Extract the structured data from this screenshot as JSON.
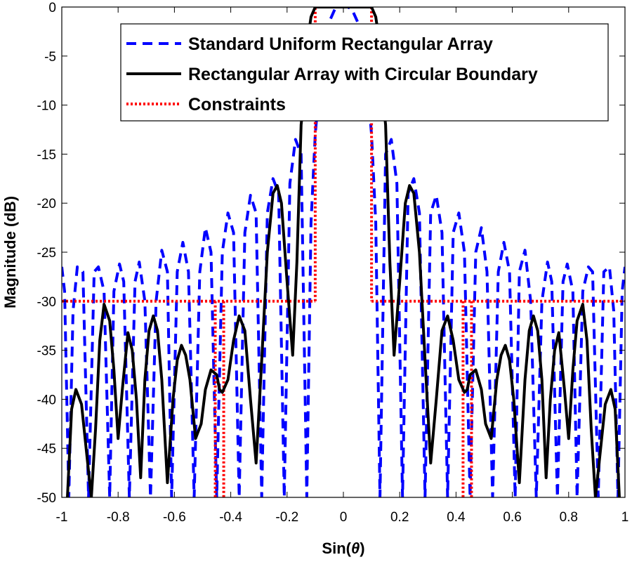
{
  "chart_data": {
    "type": "line",
    "xlabel_prefix": "Sin(",
    "xlabel_symbol": "θ",
    "xlabel_suffix": ")",
    "ylabel": "Magnitude (dB)",
    "xlim": [
      -1,
      1
    ],
    "ylim": [
      -50,
      0
    ],
    "xticks": [
      "-1",
      "-0.8",
      "-0.6",
      "-0.4",
      "-0.2",
      "0",
      "0.2",
      "0.4",
      "0.6",
      "0.8",
      "1"
    ],
    "yticks": [
      "0",
      "-5",
      "-10",
      "-15",
      "-20",
      "-25",
      "-30",
      "-35",
      "-40",
      "-45",
      "-50"
    ],
    "grid": false,
    "legend_position": "top-right",
    "series": [
      {
        "name": "Standard Uniform Rectangular Array",
        "style": "dashed",
        "color": "#0000ff",
        "x": [
          -1,
          -0.99,
          -0.975,
          -0.96,
          -0.945,
          -0.925,
          -0.905,
          -0.885,
          -0.87,
          -0.85,
          -0.83,
          -0.815,
          -0.795,
          -0.78,
          -0.76,
          -0.74,
          -0.725,
          -0.705,
          -0.685,
          -0.665,
          -0.645,
          -0.625,
          -0.61,
          -0.59,
          -0.57,
          -0.55,
          -0.53,
          -0.51,
          -0.49,
          -0.47,
          -0.45,
          -0.43,
          -0.41,
          -0.39,
          -0.37,
          -0.35,
          -0.33,
          -0.31,
          -0.29,
          -0.27,
          -0.25,
          -0.23,
          -0.21,
          -0.19,
          -0.17,
          -0.15,
          -0.13,
          -0.115,
          -0.1,
          -0.085,
          -0.07,
          -0.05,
          -0.03,
          -0.015,
          0,
          0.015,
          0.03,
          0.05,
          0.07,
          0.085,
          0.1,
          0.115,
          0.13,
          0.15,
          0.17,
          0.19,
          0.21,
          0.23,
          0.25,
          0.27,
          0.29,
          0.31,
          0.33,
          0.35,
          0.37,
          0.39,
          0.41,
          0.43,
          0.45,
          0.47,
          0.49,
          0.51,
          0.53,
          0.55,
          0.57,
          0.59,
          0.61,
          0.625,
          0.645,
          0.665,
          0.685,
          0.705,
          0.725,
          0.74,
          0.76,
          0.78,
          0.795,
          0.815,
          0.83,
          0.85,
          0.87,
          0.885,
          0.905,
          0.925,
          0.945,
          0.96,
          0.975,
          0.99,
          1
        ],
        "y": [
          -26.5,
          -29,
          -50,
          -31,
          -26.5,
          -27,
          -50,
          -27,
          -26.5,
          -29,
          -50,
          -29,
          -26.2,
          -28,
          -50,
          -28,
          -26,
          -30,
          -50,
          -30,
          -24.8,
          -27,
          -50,
          -27,
          -24,
          -27,
          -50,
          -27,
          -22.5,
          -25,
          -50,
          -25,
          -21,
          -23,
          -50,
          -23,
          -19.2,
          -21,
          -50,
          -21,
          -17.5,
          -19,
          -50,
          -18,
          -13.5,
          -15,
          -50,
          -22,
          -13,
          -8,
          -4,
          -1.5,
          -0.2,
          0,
          0,
          0,
          -0.2,
          -1.5,
          -4,
          -8,
          -13,
          -22,
          -50,
          -15,
          -13.5,
          -18,
          -50,
          -19,
          -17.5,
          -21,
          -50,
          -21,
          -19.2,
          -23,
          -50,
          -23,
          -21,
          -25,
          -50,
          -25,
          -22.5,
          -27,
          -50,
          -27,
          -24,
          -27,
          -50,
          -27,
          -24.8,
          -30,
          -50,
          -30,
          -26,
          -28,
          -50,
          -28,
          -26.2,
          -29,
          -50,
          -29,
          -26.5,
          -27,
          -50,
          -27,
          -26.5,
          -31,
          -50,
          -29,
          -26.5
        ]
      },
      {
        "name": "Rectangular Array with Circular Boundary",
        "style": "solid",
        "color": "#000000",
        "x": [
          -0.98,
          -0.965,
          -0.95,
          -0.93,
          -0.91,
          -0.895,
          -0.88,
          -0.865,
          -0.85,
          -0.83,
          -0.815,
          -0.8,
          -0.785,
          -0.765,
          -0.75,
          -0.735,
          -0.72,
          -0.705,
          -0.69,
          -0.675,
          -0.66,
          -0.645,
          -0.625,
          -0.605,
          -0.59,
          -0.575,
          -0.56,
          -0.545,
          -0.525,
          -0.505,
          -0.49,
          -0.47,
          -0.45,
          -0.44,
          -0.43,
          -0.41,
          -0.39,
          -0.37,
          -0.35,
          -0.33,
          -0.31,
          -0.29,
          -0.27,
          -0.25,
          -0.235,
          -0.22,
          -0.2,
          -0.18,
          -0.165,
          -0.15,
          -0.135,
          -0.125,
          -0.115,
          -0.1,
          0.1,
          0.115,
          0.125,
          0.135,
          0.15,
          0.165,
          0.18,
          0.2,
          0.22,
          0.235,
          0.25,
          0.27,
          0.29,
          0.31,
          0.33,
          0.35,
          0.37,
          0.39,
          0.41,
          0.43,
          0.44,
          0.45,
          0.47,
          0.49,
          0.505,
          0.525,
          0.545,
          0.56,
          0.575,
          0.59,
          0.605,
          0.625,
          0.645,
          0.66,
          0.675,
          0.69,
          0.705,
          0.72,
          0.735,
          0.75,
          0.765,
          0.785,
          0.8,
          0.815,
          0.83,
          0.85,
          0.865,
          0.88,
          0.895,
          0.91,
          0.93,
          0.95,
          0.965,
          0.98
        ],
        "y": [
          -50,
          -41,
          -39,
          -40.5,
          -46,
          -50,
          -43,
          -34,
          -30.3,
          -32,
          -37,
          -44,
          -39,
          -33.2,
          -35,
          -40,
          -48,
          -38,
          -33,
          -31.5,
          -33,
          -38,
          -48.5,
          -40,
          -36,
          -34.5,
          -35.5,
          -38,
          -44,
          -42.5,
          -39,
          -37,
          -37.5,
          -39,
          -39.3,
          -38,
          -34,
          -31.5,
          -33,
          -40,
          -46.5,
          -36,
          -25,
          -19,
          -18.2,
          -20,
          -28,
          -35.5,
          -26,
          -12,
          -8,
          -3,
          -1,
          0,
          0,
          -1,
          -3,
          -8,
          -12,
          -26,
          -35.5,
          -28,
          -20,
          -18.2,
          -19,
          -25,
          -36,
          -46.5,
          -40,
          -33,
          -31.5,
          -34,
          -38,
          -39.3,
          -39,
          -37.5,
          -37,
          -39,
          -42.5,
          -44,
          -38,
          -35.5,
          -34.5,
          -36,
          -40,
          -48.5,
          -38,
          -33,
          -31.5,
          -33,
          -38,
          -48,
          -40,
          -35,
          -33.2,
          -39,
          -44,
          -37,
          -32,
          -30.3,
          -34,
          -43,
          -50,
          -46,
          -40.5,
          -39,
          -41,
          -50
        ]
      },
      {
        "name": "Constraints",
        "style": "dotted",
        "color": "#ff0000",
        "segments": [
          {
            "x": [
              -1,
              -0.1
            ],
            "y": [
              -30,
              -30
            ]
          },
          {
            "x": [
              -0.1,
              -0.1
            ],
            "y": [
              -30,
              -11
            ]
          },
          {
            "x": [
              -0.1,
              -0.1
            ],
            "y": [
              -2,
              0
            ]
          },
          {
            "x": [
              -0.1,
              0.1
            ],
            "y": [
              0,
              0
            ]
          },
          {
            "x": [
              0.1,
              0.1
            ],
            "y": [
              0,
              -2
            ]
          },
          {
            "x": [
              0.1,
              0.1
            ],
            "y": [
              -11,
              -30
            ]
          },
          {
            "x": [
              0.1,
              1
            ],
            "y": [
              -30,
              -30
            ]
          },
          {
            "x": [
              -0.455,
              -0.455
            ],
            "y": [
              -30,
              -50
            ]
          },
          {
            "x": [
              -0.425,
              -0.425
            ],
            "y": [
              -30,
              -50
            ]
          },
          {
            "x": [
              0.425,
              0.425
            ],
            "y": [
              -30,
              -50
            ]
          },
          {
            "x": [
              0.455,
              0.455
            ],
            "y": [
              -30,
              -50
            ]
          }
        ]
      }
    ]
  }
}
